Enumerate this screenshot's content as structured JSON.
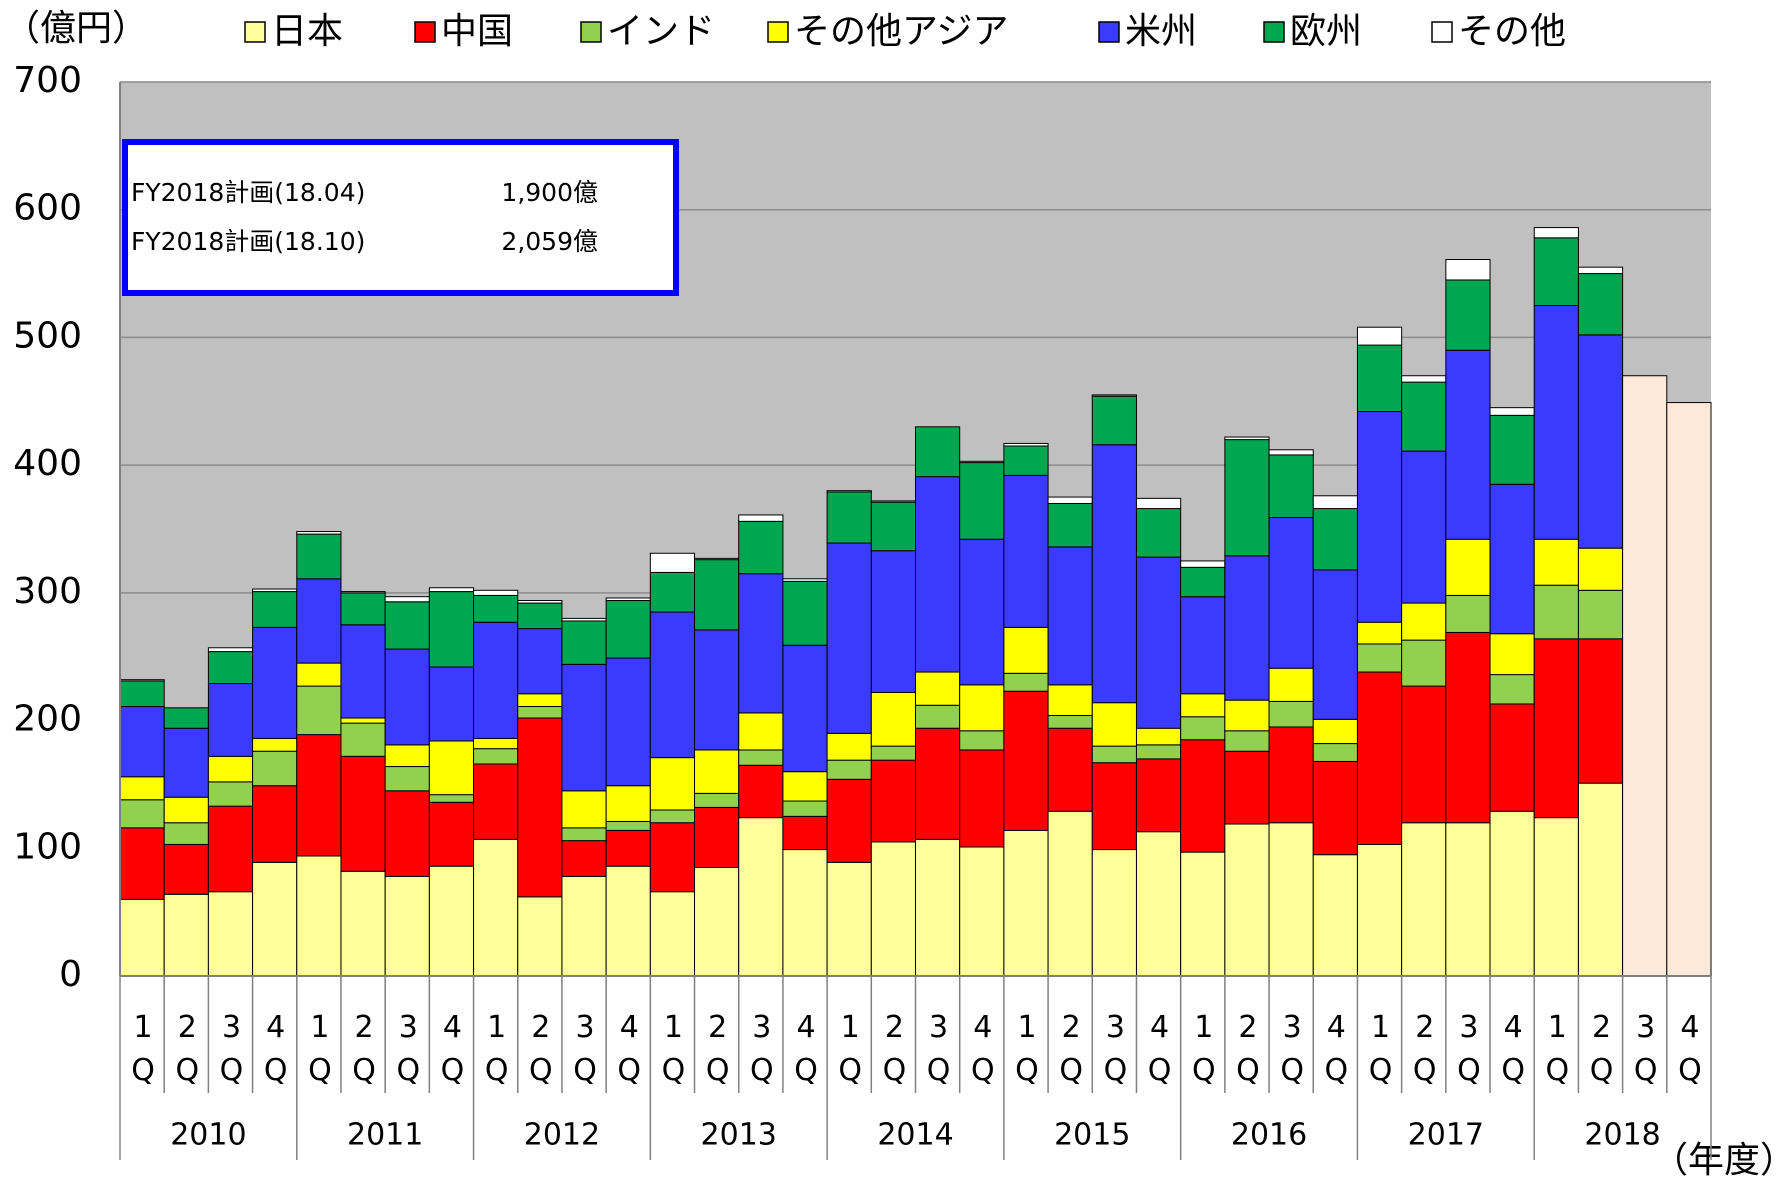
{
  "chart_data": {
    "type": "bar",
    "stacked": true,
    "y_unit": "（億円）",
    "x_unit": "（年度）",
    "annotation_rows": [
      [
        "FY2018計画(18.04)",
        "1,900億"
      ],
      [
        "FY2018計画(18.10)",
        "2,059億"
      ]
    ],
    "categories": [
      "1Q",
      "2Q",
      "3Q",
      "4Q",
      "1Q",
      "2Q",
      "3Q",
      "4Q",
      "1Q",
      "2Q",
      "3Q",
      "4Q",
      "1Q",
      "2Q",
      "3Q",
      "4Q",
      "1Q",
      "2Q",
      "3Q",
      "4Q",
      "1Q",
      "2Q",
      "3Q",
      "4Q",
      "1Q",
      "2Q",
      "3Q",
      "4Q",
      "1Q",
      "2Q",
      "3Q",
      "4Q",
      "1Q",
      "2Q",
      "3Q",
      "4Q"
    ],
    "year_groups": [
      "2010",
      "2011",
      "2012",
      "2013",
      "2014",
      "2015",
      "2016",
      "2017",
      "2018"
    ],
    "series": [
      {
        "name": "日本",
        "color": "#ffff99",
        "values": [
          60,
          64,
          66,
          89,
          94,
          82,
          78,
          86,
          107,
          62,
          78,
          86,
          66,
          85,
          124,
          99,
          89,
          105,
          107,
          101,
          114,
          129,
          99,
          113,
          97,
          119,
          120,
          95,
          103,
          120,
          120,
          129,
          124,
          151,
          null,
          null
        ]
      },
      {
        "name": "中国",
        "color": "#ff0000",
        "values": [
          56,
          39,
          67,
          60,
          95,
          90,
          67,
          50,
          59,
          140,
          28,
          28,
          54,
          47,
          41,
          26,
          65,
          64,
          87,
          76,
          109,
          65,
          68,
          57,
          88,
          57,
          75,
          73,
          135,
          107,
          149,
          84,
          140,
          113,
          null,
          null
        ]
      },
      {
        "name": "インド",
        "color": "#92d050",
        "values": [
          22,
          17,
          19,
          27,
          38,
          26,
          19,
          6,
          12,
          9,
          10,
          7,
          10,
          11,
          12,
          12,
          15,
          11,
          18,
          15,
          14,
          10,
          13,
          11,
          18,
          16,
          20,
          14,
          22,
          36,
          29,
          23,
          42,
          38,
          null,
          null
        ]
      },
      {
        "name": "その他アジア",
        "color": "#ffff00",
        "values": [
          18,
          20,
          20,
          10,
          18,
          4,
          17,
          42,
          8,
          10,
          29,
          28,
          41,
          34,
          29,
          23,
          21,
          42,
          26,
          36,
          36,
          24,
          34,
          13,
          18,
          24,
          26,
          19,
          17,
          29,
          44,
          32,
          36,
          33,
          null,
          null
        ]
      },
      {
        "name": "米州",
        "color": "#3b3bff",
        "values": [
          55,
          54,
          57,
          87,
          66,
          73,
          75,
          58,
          91,
          51,
          99,
          100,
          114,
          94,
          109,
          99,
          149,
          111,
          153,
          114,
          119,
          108,
          202,
          134,
          76,
          113,
          118,
          117,
          165,
          119,
          148,
          117,
          183,
          167,
          null,
          null
        ]
      },
      {
        "name": "欧州",
        "color": "#00a650",
        "values": [
          20,
          16,
          25,
          28,
          35,
          25,
          37,
          59,
          21,
          20,
          34,
          45,
          31,
          55,
          41,
          50,
          40,
          38,
          39,
          60,
          23,
          34,
          38,
          38,
          23,
          91,
          49,
          48,
          52,
          54,
          55,
          54,
          53,
          48,
          null,
          null
        ]
      },
      {
        "name": "その他",
        "color": "#ffffff",
        "values": [
          1,
          0,
          3,
          2,
          2,
          1,
          4,
          3,
          4,
          2,
          2,
          2,
          15,
          1,
          5,
          2,
          1,
          1,
          0,
          1,
          2,
          5,
          1,
          8,
          5,
          2,
          4,
          10,
          14,
          5,
          16,
          6,
          8,
          5,
          null,
          null
        ]
      }
    ],
    "forecast_values": [
      null,
      null,
      null,
      null,
      null,
      null,
      null,
      null,
      null,
      null,
      null,
      null,
      null,
      null,
      null,
      null,
      null,
      null,
      null,
      null,
      null,
      null,
      null,
      null,
      null,
      null,
      null,
      null,
      null,
      null,
      null,
      null,
      null,
      null,
      470,
      449
    ],
    "forecast_color": "#fde9d9",
    "plot_background": "#c0c0c0",
    "ylim": [
      0,
      700
    ],
    "yticks": [
      0,
      100,
      200,
      300,
      400,
      500,
      600,
      700
    ],
    "grid": true
  }
}
